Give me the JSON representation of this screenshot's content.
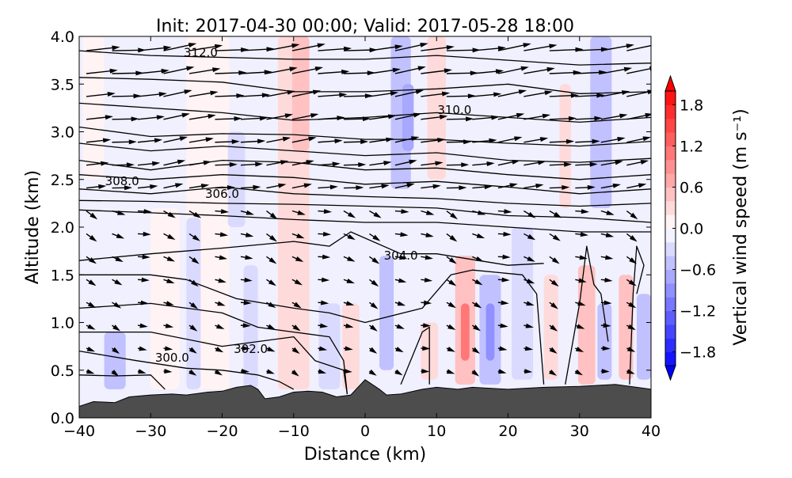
{
  "chart_data": {
    "type": "heatmap",
    "title": "Init: 2017-04-30 00:00; Valid: 2017-05-28 18:00",
    "xlabel": "Distance (km)",
    "ylabel": "Altitude (km)",
    "xlim": [
      -40,
      40
    ],
    "ylim": [
      0,
      4
    ],
    "xticks": [
      "−40",
      "−30",
      "−20",
      "−10",
      "0",
      "10",
      "20",
      "30",
      "40"
    ],
    "xtick_values": [
      -40,
      -30,
      -20,
      -10,
      0,
      10,
      20,
      30,
      40
    ],
    "yticks": [
      "0.0",
      "0.5",
      "1.0",
      "1.5",
      "2.0",
      "2.5",
      "3.0",
      "3.5",
      "4.0"
    ],
    "ytick_values": [
      0,
      0.5,
      1,
      1.5,
      2,
      2.5,
      3,
      3.5,
      4
    ],
    "colorbar": {
      "label": "Vertical wind speed (m s⁻¹)",
      "range": [
        -2,
        2
      ],
      "step": 0.2,
      "ticks": [
        "−1.8",
        "−1.2",
        "−0.6",
        "0.0",
        "0.6",
        "1.2",
        "1.8"
      ],
      "tick_values": [
        -1.8,
        -1.2,
        -0.6,
        0,
        0.6,
        1.2,
        1.8
      ],
      "extend": "both"
    },
    "colors": {
      "positive": "#ff0000",
      "negative": "#0000ff",
      "terrain": "#4d4d4d",
      "background_w": -0.1
    },
    "w_bands": [
      [
        -10,
        2.2,
        0.3,
        0.3,
        4
      ],
      [
        -9,
        1.2,
        0.5,
        2.8,
        4
      ],
      [
        -22,
        3,
        0.15,
        0.3,
        4
      ],
      [
        -28,
        2,
        0.1,
        0.3,
        2.2
      ],
      [
        -24,
        1.0,
        -0.3,
        0.3,
        2.1
      ],
      [
        -18,
        1.2,
        -0.3,
        2.0,
        3.0
      ],
      [
        -16,
        1,
        -0.3,
        0.3,
        1.6
      ],
      [
        -35,
        1.5,
        -0.4,
        0.3,
        0.9
      ],
      [
        -5,
        1.5,
        -0.3,
        0.3,
        1.2
      ],
      [
        -2,
        1.2,
        0.3,
        0.3,
        1.2
      ],
      [
        3,
        1.0,
        -0.4,
        0.5,
        1.7
      ],
      [
        5,
        1.4,
        -0.5,
        2.4,
        4
      ],
      [
        6,
        0.8,
        -0.7,
        2.8,
        3.5
      ],
      [
        9,
        1.2,
        0.2,
        0.4,
        1.0
      ],
      [
        10,
        1.3,
        0.3,
        2.5,
        4
      ],
      [
        14,
        1.4,
        0.6,
        0.35,
        1.7
      ],
      [
        14,
        0.6,
        1.0,
        0.6,
        1.2
      ],
      [
        17.5,
        1.5,
        -0.6,
        0.35,
        1.5
      ],
      [
        17.5,
        0.6,
        -0.9,
        0.6,
        1.2
      ],
      [
        22,
        1.5,
        -0.3,
        0.4,
        2.0
      ],
      [
        26,
        1.0,
        0.3,
        0.4,
        1.5
      ],
      [
        28,
        0.8,
        0.3,
        2.2,
        3.5
      ],
      [
        31,
        1.2,
        0.5,
        0.35,
        1.6
      ],
      [
        33.5,
        1.0,
        -0.4,
        0.4,
        1.2
      ],
      [
        33,
        1.5,
        -0.4,
        2.2,
        4
      ],
      [
        36.5,
        1.0,
        0.6,
        0.4,
        1.5
      ],
      [
        39,
        1.0,
        -0.5,
        0.4,
        1.3
      ],
      [
        -38,
        1.5,
        0.15,
        2.5,
        4
      ]
    ],
    "terrain": [
      [
        -40,
        0.12
      ],
      [
        -38,
        0.17
      ],
      [
        -35,
        0.16
      ],
      [
        -33,
        0.22
      ],
      [
        -30,
        0.24
      ],
      [
        -27,
        0.25
      ],
      [
        -25,
        0.24
      ],
      [
        -22,
        0.27
      ],
      [
        -20,
        0.28
      ],
      [
        -18,
        0.32
      ],
      [
        -16,
        0.34
      ],
      [
        -15,
        0.3
      ],
      [
        -14,
        0.2
      ],
      [
        -12,
        0.22
      ],
      [
        -10,
        0.27
      ],
      [
        -8,
        0.28
      ],
      [
        -6,
        0.27
      ],
      [
        -4,
        0.22
      ],
      [
        -2,
        0.24
      ],
      [
        0,
        0.4
      ],
      [
        1,
        0.35
      ],
      [
        2,
        0.3
      ],
      [
        3,
        0.24
      ],
      [
        5,
        0.25
      ],
      [
        8,
        0.3
      ],
      [
        10,
        0.32
      ],
      [
        13,
        0.3
      ],
      [
        15,
        0.32
      ],
      [
        20,
        0.3
      ],
      [
        25,
        0.32
      ],
      [
        30,
        0.33
      ],
      [
        35,
        0.35
      ],
      [
        38,
        0.32
      ],
      [
        40,
        0.3
      ]
    ],
    "isentropes": [
      [
        [
          -40,
          3.85
        ],
        [
          -30,
          3.8
        ],
        [
          -20,
          3.78
        ],
        [
          -10,
          3.76
        ],
        [
          0,
          3.76
        ],
        [
          10,
          3.8
        ],
        [
          20,
          3.75
        ],
        [
          30,
          3.7
        ],
        [
          40,
          3.72
        ]
      ],
      [
        [
          -40,
          3.57
        ],
        [
          -30,
          3.55
        ],
        [
          -20,
          3.52
        ],
        [
          -10,
          3.42
        ],
        [
          0,
          3.42
        ],
        [
          10,
          3.45
        ],
        [
          20,
          3.5
        ],
        [
          30,
          3.4
        ],
        [
          40,
          3.42
        ]
      ],
      [
        [
          -40,
          3.3
        ],
        [
          -30,
          3.25
        ],
        [
          -20,
          3.2
        ],
        [
          -10,
          3.12
        ],
        [
          0,
          3.15
        ],
        [
          10,
          3.2
        ],
        [
          20,
          3.15
        ],
        [
          30,
          3.1
        ],
        [
          40,
          3.15
        ]
      ],
      [
        [
          -40,
          3.05
        ],
        [
          -30,
          2.95
        ],
        [
          -20,
          2.98
        ],
        [
          -10,
          2.97
        ],
        [
          0,
          2.92
        ],
        [
          10,
          2.92
        ],
        [
          20,
          2.88
        ],
        [
          30,
          2.85
        ],
        [
          40,
          2.9
        ]
      ],
      [
        [
          -40,
          2.88
        ],
        [
          -30,
          2.8
        ],
        [
          -20,
          2.85
        ],
        [
          -10,
          2.8
        ],
        [
          0,
          2.75
        ],
        [
          10,
          2.78
        ],
        [
          20,
          2.7
        ],
        [
          30,
          2.68
        ],
        [
          40,
          2.72
        ]
      ],
      [
        [
          -40,
          2.7
        ],
        [
          -30,
          2.6
        ],
        [
          -20,
          2.7
        ],
        [
          -10,
          2.68
        ],
        [
          0,
          2.6
        ],
        [
          10,
          2.62
        ],
        [
          20,
          2.55
        ],
        [
          30,
          2.5
        ],
        [
          40,
          2.55
        ]
      ],
      [
        [
          -40,
          2.55
        ],
        [
          -30,
          2.5
        ],
        [
          -20,
          2.55
        ],
        [
          -10,
          2.52
        ],
        [
          0,
          2.45
        ],
        [
          10,
          2.48
        ],
        [
          20,
          2.42
        ],
        [
          30,
          2.35
        ],
        [
          40,
          2.4
        ]
      ],
      [
        [
          -40,
          2.4
        ],
        [
          -30,
          2.35
        ],
        [
          -20,
          2.42
        ],
        [
          -10,
          2.35
        ],
        [
          0,
          2.32
        ],
        [
          10,
          2.3
        ],
        [
          20,
          2.25
        ],
        [
          30,
          2.22
        ],
        [
          40,
          2.25
        ]
      ],
      [
        [
          -40,
          2.28
        ],
        [
          -30,
          2.27
        ],
        [
          -20,
          2.25
        ],
        [
          -10,
          2.24
        ],
        [
          0,
          2.22
        ],
        [
          10,
          2.2
        ],
        [
          20,
          2.12
        ],
        [
          30,
          2.1
        ],
        [
          40,
          2.05
        ]
      ],
      [
        [
          -40,
          2.18
        ],
        [
          -30,
          2.15
        ],
        [
          -20,
          2.12
        ],
        [
          -10,
          2.08
        ],
        [
          0,
          2.05
        ],
        [
          10,
          2.05
        ],
        [
          20,
          2.0
        ],
        [
          30,
          1.95
        ],
        [
          40,
          1.95
        ]
      ],
      [
        [
          -40,
          1.65
        ],
        [
          -30,
          1.72
        ],
        [
          -20,
          1.78
        ],
        [
          -10,
          1.85
        ],
        [
          -5,
          1.8
        ],
        [
          -2,
          1.95
        ],
        [
          5,
          1.72
        ],
        [
          10,
          1.72
        ],
        [
          20,
          1.6
        ],
        [
          25,
          1.62
        ]
      ],
      [
        [
          -40,
          1.5
        ],
        [
          -30,
          1.5
        ],
        [
          -25,
          1.45
        ],
        [
          -18,
          1.25
        ],
        [
          -10,
          1.15
        ],
        [
          -5,
          1.1
        ],
        [
          0,
          1.0
        ],
        [
          8,
          1.15
        ],
        [
          12,
          1.5
        ],
        [
          15,
          1.55
        ],
        [
          22,
          1.5
        ],
        [
          24,
          1.3
        ],
        [
          25,
          0.35
        ]
      ],
      [
        [
          -40,
          1.15
        ],
        [
          -30,
          1.2
        ],
        [
          -20,
          1.1
        ],
        [
          -15,
          0.95
        ],
        [
          -10,
          0.9
        ],
        [
          -5,
          0.85
        ],
        [
          -3,
          0.6
        ],
        [
          -2.5,
          0.25
        ]
      ],
      [
        [
          -40,
          0.9
        ],
        [
          -30,
          0.9
        ],
        [
          -20,
          0.75
        ],
        [
          -15,
          0.8
        ],
        [
          -10,
          0.85
        ],
        [
          -7,
          0.6
        ],
        [
          -3,
          0.5
        ],
        [
          -2.5,
          0.25
        ]
      ],
      [
        [
          -40,
          0.7
        ],
        [
          -32,
          0.6
        ],
        [
          -25,
          0.52
        ],
        [
          -20,
          0.5
        ],
        [
          -15,
          0.45
        ],
        [
          -12,
          0.38
        ],
        [
          -10,
          0.3
        ]
      ],
      [
        [
          -40,
          0.45
        ],
        [
          -35,
          0.44
        ],
        [
          -30,
          0.45
        ],
        [
          -28,
          0.3
        ]
      ],
      [
        [
          28,
          0.35
        ],
        [
          30,
          1.2
        ],
        [
          31,
          1.8
        ],
        [
          32,
          1.4
        ],
        [
          33,
          1.3
        ],
        [
          34,
          0.8
        ]
      ],
      [
        [
          37,
          0.35
        ],
        [
          37.5,
          1.3
        ],
        [
          38,
          1.8
        ],
        [
          39,
          1.6
        ],
        [
          38,
          1.3
        ]
      ],
      [
        [
          5,
          0.35
        ],
        [
          8,
          0.9
        ],
        [
          9,
          0.95
        ],
        [
          9,
          0.35
        ]
      ]
    ],
    "contour_labels": [
      {
        "text": "312.0",
        "x": -23,
        "z": 3.83
      },
      {
        "text": "310.0",
        "x": 12.5,
        "z": 3.23
      },
      {
        "text": "308.0",
        "x": -34,
        "z": 2.48
      },
      {
        "text": "306.0",
        "x": -20,
        "z": 2.35
      },
      {
        "text": "304.0",
        "x": 5,
        "z": 1.7
      },
      {
        "text": "302.0",
        "x": -16,
        "z": 0.72
      },
      {
        "text": "300.0",
        "x": -27,
        "z": 0.63
      }
    ]
  }
}
